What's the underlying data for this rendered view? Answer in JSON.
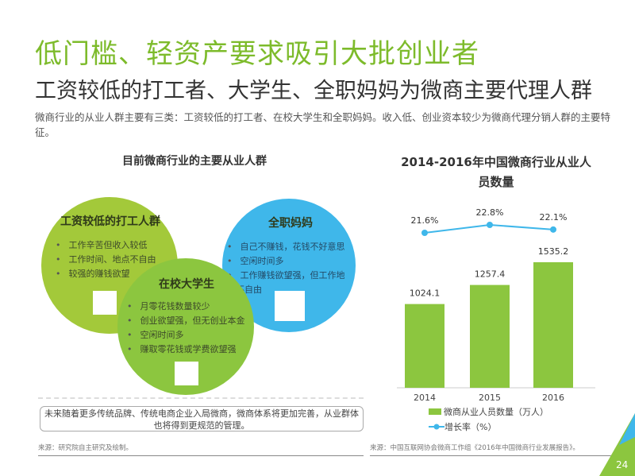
{
  "title": "低门槛、轻资产要求吸引大批创业者",
  "subtitle": "工资较低的打工者、大学生、全职妈妈为微商主要代理人群",
  "intro": "微商行业的从业人群主要有三类：工资较低的打工者、在校大学生和全职妈妈。收入低、创业资本较少为微商代理分销人群的主要特征。",
  "left_panel": {
    "heading": "目前微商行业的主要从业人群",
    "groups": [
      {
        "title": "工资较低的打工人群",
        "color": "#a3c93a",
        "items": [
          "工作辛苦但收入较低",
          "工作时间、地点不自由",
          "较强的赚钱欲望"
        ]
      },
      {
        "title": "在校大学生",
        "color": "#8cc63f",
        "items": [
          "月零花钱数量较少",
          "创业欲望强，但无创业本金",
          "空闲时间多",
          "赚取零花钱或学费欲望强"
        ]
      },
      {
        "title": "全职妈妈",
        "color": "#3fb7ea",
        "items": [
          "自己不赚钱，花钱不好意思",
          "空闲时间多",
          "工作赚钱欲望强，但工作地点不自由"
        ]
      }
    ],
    "note": "未来随着更多传统品牌、传统电商企业入局微商，微商体系将更加完善，从业群体也将得到更规范的管理。",
    "source": "来源：研究院自主研究及绘制。"
  },
  "chart_data": {
    "type": "bar",
    "title": "2014-2016年中国微商行业从业人员数量",
    "categories": [
      "2014",
      "2015",
      "2016"
    ],
    "series": [
      {
        "name": "微商从业人员数量（万人）",
        "type": "bar",
        "color": "#8cc63f",
        "values": [
          1024.1,
          1257.4,
          1535.2
        ],
        "labels": [
          "1024.1",
          "1257.4",
          "1535.2"
        ]
      },
      {
        "name": "增长率（%）",
        "type": "line",
        "color": "#3fb7ea",
        "values": [
          21.6,
          22.8,
          22.1
        ],
        "labels": [
          "21.6%",
          "22.8%",
          "22.1%"
        ]
      }
    ],
    "legend": "bottom",
    "source": "来源：中国互联网协会微商工作组《2016年中国微商行业发展报告》。"
  },
  "page_number": "24"
}
